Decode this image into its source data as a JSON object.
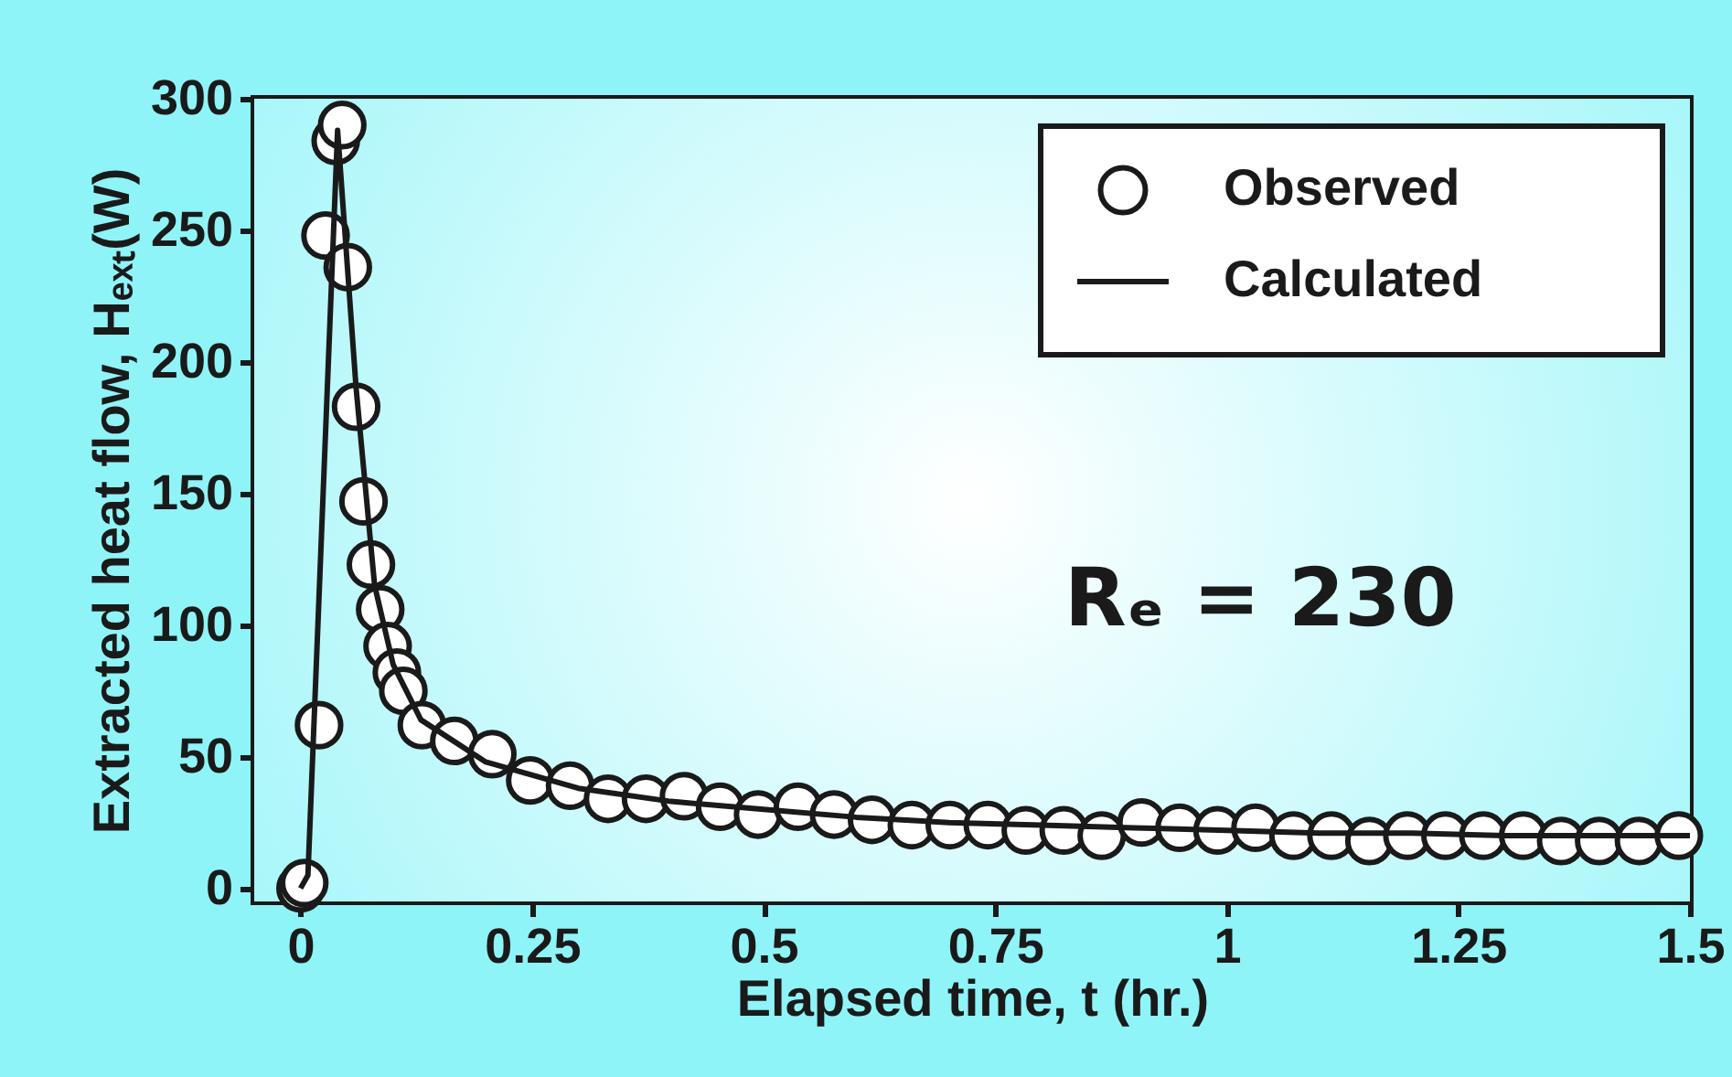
{
  "chart_data": {
    "type": "scatter",
    "xlabel": "Elapsed time, t (hr.)",
    "ylabel": "Extracted heat flow, Hₑₓₜ(W)",
    "xlim": [
      -0.05,
      1.5
    ],
    "xticks": [
      0,
      0.25,
      0.5,
      0.75,
      1,
      1.25,
      1.5
    ],
    "ylim": [
      -5,
      300
    ],
    "yticks": [
      0,
      50,
      100,
      150,
      200,
      250,
      300
    ],
    "grid": false,
    "legend": "top right",
    "annotations": [
      "Rₑ = 230"
    ],
    "series": [
      {
        "name": "Observed",
        "type": "scatter",
        "marker": "circle",
        "color": "#ffffff",
        "x": [
          0,
          0.004,
          0.02,
          0.027,
          0.038,
          0.045,
          0.051,
          0.06,
          0.068,
          0.076,
          0.086,
          0.094,
          0.104,
          0.111,
          0.131,
          0.166,
          0.207,
          0.248,
          0.291,
          0.332,
          0.373,
          0.414,
          0.453,
          0.494,
          0.537,
          0.576,
          0.617,
          0.66,
          0.701,
          0.742,
          0.783,
          0.824,
          0.865,
          0.908,
          0.949,
          0.99,
          1.031,
          1.072,
          1.113,
          1.154,
          1.195,
          1.236,
          1.277,
          1.32,
          1.361,
          1.402,
          1.445,
          1.488
        ],
        "values": [
          0,
          2,
          62,
          248,
          284,
          290,
          236,
          183,
          147,
          123,
          106,
          92,
          82,
          75,
          62,
          56,
          51,
          41,
          39,
          34,
          34,
          35,
          31,
          28,
          31,
          28,
          26,
          24,
          24,
          24,
          22,
          22,
          20,
          25,
          23,
          22,
          23,
          20,
          20,
          18,
          20,
          20,
          20,
          20,
          18,
          18,
          18,
          20
        ]
      },
      {
        "name": "Calculated",
        "type": "line",
        "color": "#1a1a1a",
        "line_style": "solid",
        "marker": "none",
        "x": [
          0,
          0.008,
          0.04,
          0.06,
          0.08,
          0.1,
          0.13,
          0.2,
          0.3,
          0.4,
          0.5,
          0.6,
          0.7,
          0.8,
          0.9,
          1.0,
          1.1,
          1.2,
          1.3,
          1.4,
          1.5
        ],
        "values": [
          0,
          5,
          288,
          190,
          115,
          85,
          64,
          48,
          38,
          33,
          30,
          27,
          25,
          24,
          23,
          22,
          21,
          21,
          20,
          20,
          20
        ]
      }
    ]
  }
}
